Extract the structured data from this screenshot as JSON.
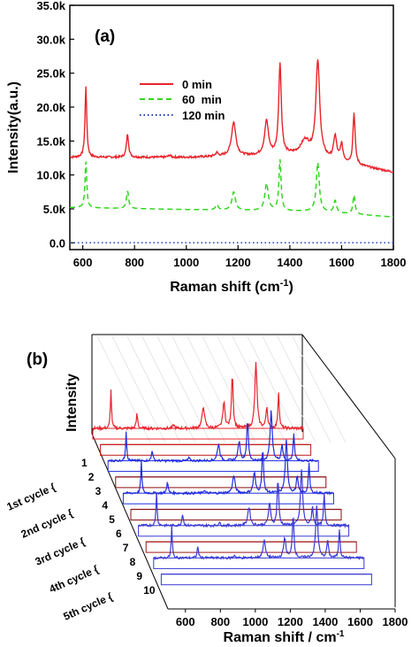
{
  "chart_data": [
    {
      "type": "line",
      "panel_label": "(a)",
      "xlabel": "Raman shift",
      "xlabel_unit": "(cm",
      "xlabel_sup": "-1",
      "xlabel_close": ")",
      "ylabel": "Intensity(a.u.)",
      "xlim": [
        550,
        1800
      ],
      "ylim": [
        -1000,
        35000
      ],
      "x_ticks": [
        600,
        800,
        1000,
        1200,
        1400,
        1600,
        1800
      ],
      "y_ticks": [
        0,
        5000,
        10000,
        15000,
        20000,
        25000,
        30000,
        35000
      ],
      "y_tick_labels": [
        "0.0",
        "5.0k",
        "10.0k",
        "15.0k",
        "20.0k",
        "25.0k",
        "30.0k",
        "35.0k"
      ],
      "legend_position": "upper-left-center",
      "series": [
        {
          "name": "0 min",
          "color": "#e8242b",
          "style": "solid",
          "baseline": [
            [
              550,
              12600
            ],
            [
              1000,
              12600
            ],
            [
              1450,
              13000
            ],
            [
              1650,
              11500
            ],
            [
              1800,
              10400
            ]
          ],
          "peaks": [
            [
              612,
              10500,
              4
            ],
            [
              773,
              3400,
              5
            ],
            [
              935,
              300,
              6
            ],
            [
              1118,
              500,
              6
            ],
            [
              1183,
              5000,
              10
            ],
            [
              1310,
              5000,
              9
            ],
            [
              1362,
              13500,
              6
            ],
            [
              1460,
              2000,
              20
            ],
            [
              1508,
              14000,
              9
            ],
            [
              1575,
              3500,
              7
            ],
            [
              1600,
              2500,
              6
            ],
            [
              1648,
              7500,
              5
            ]
          ]
        },
        {
          "name": "60  min",
          "color": "#33d71f",
          "style": "dashed",
          "baseline": [
            [
              550,
              5200
            ],
            [
              1000,
              4900
            ],
            [
              1500,
              4600
            ],
            [
              1800,
              3800
            ]
          ],
          "peaks": [
            [
              612,
              6800,
              4
            ],
            [
              773,
              2600,
              5
            ],
            [
              1118,
              800,
              6
            ],
            [
              1183,
              2700,
              8
            ],
            [
              1310,
              4000,
              8
            ],
            [
              1362,
              7500,
              5
            ],
            [
              1508,
              7200,
              7
            ],
            [
              1575,
              1800,
              6
            ],
            [
              1648,
              2800,
              5
            ]
          ]
        },
        {
          "name": "120 min",
          "color": "#1f3fbf",
          "style": "dotted",
          "baseline": [
            [
              550,
              0
            ],
            [
              1800,
              0
            ]
          ],
          "peaks": []
        }
      ]
    },
    {
      "type": "line",
      "panel_label": "(b)",
      "xlabel": "Raman shift / cm",
      "xlabel_sup": "-1",
      "ylabel": "Intensity",
      "xlim": [
        500,
        1800
      ],
      "x_ticks": [
        600,
        800,
        1000,
        1200,
        1400,
        1600,
        1800
      ],
      "spectrum_index_labels": [
        "1",
        "2",
        "3",
        "4",
        "5",
        "6",
        "7",
        "8",
        "9",
        "10"
      ],
      "cycle_labels": [
        "1st cycle  {",
        "2nd cycle  {",
        "3rd cycle  {",
        "4th cycle  {",
        "5th cycle  {"
      ],
      "spectra_colors": [
        "#e8242b",
        "#c01c1c",
        "#1f2ce0",
        "#8b0f12",
        "#1f2ce0",
        "#8b0f12",
        "#3a3ad6",
        "#a01818",
        "#3a3ad6",
        "#3a3ad6"
      ],
      "spectra_intensity": [
        1.0,
        0.0,
        0.75,
        0.0,
        0.8,
        0.0,
        0.85,
        0.0,
        0.8,
        0.0
      ]
    }
  ]
}
